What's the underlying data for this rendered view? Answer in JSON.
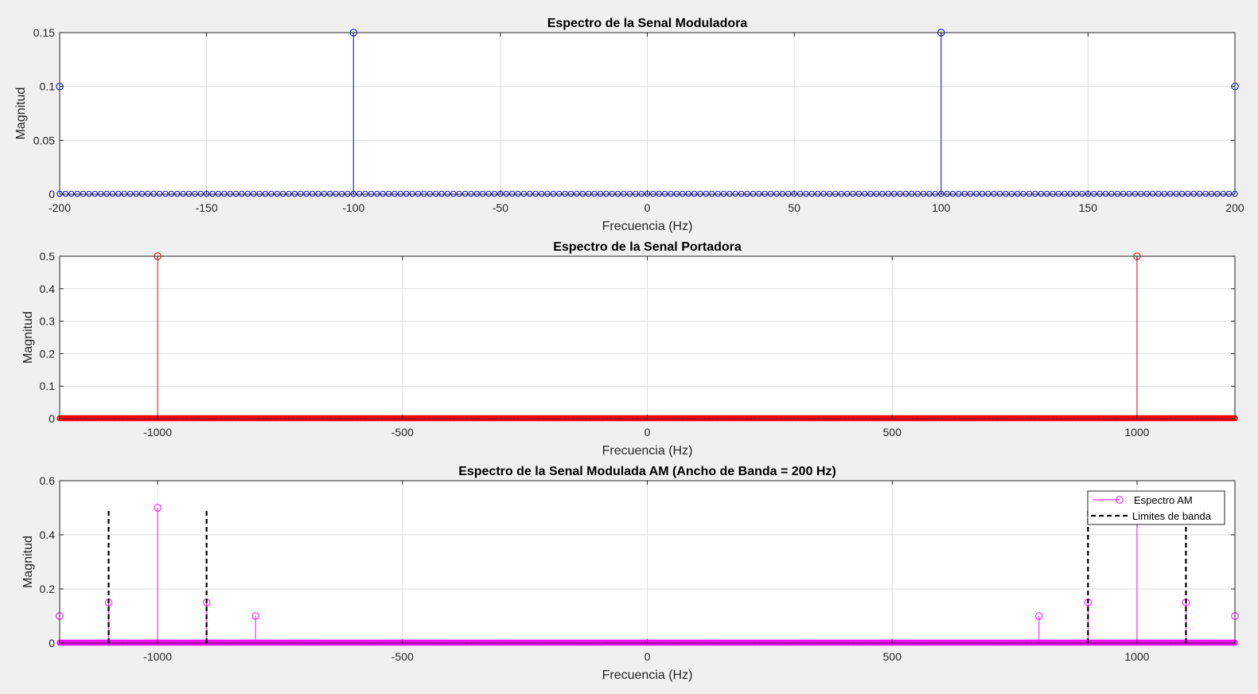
{
  "chart_data": [
    {
      "type": "stem",
      "title": "Espectro de la Senal Moduladora",
      "xlabel": "Frecuencia (Hz)",
      "ylabel": "Magnitud",
      "xlim": [
        -200,
        200
      ],
      "ylim": [
        0,
        0.15
      ],
      "xticks": [
        -200,
        -150,
        -100,
        -50,
        0,
        50,
        100,
        150,
        200
      ],
      "xtick_labels": [
        "-200",
        "-150",
        "-100",
        "-50",
        "0",
        "50",
        "100",
        "150",
        "200"
      ],
      "yticks": [
        0,
        0.05,
        0.1,
        0.15
      ],
      "ytick_labels": [
        "0",
        "0.05",
        "0.1",
        "0.15"
      ],
      "grid": true,
      "color": "#0000ff",
      "baseline_x": [
        -200,
        200
      ],
      "baseline_step": 2,
      "peaks": [
        {
          "x": -200,
          "y": 0.1
        },
        {
          "x": -100,
          "y": 0.15
        },
        {
          "x": 100,
          "y": 0.15
        },
        {
          "x": 200,
          "y": 0.1
        }
      ]
    },
    {
      "type": "stem",
      "title": "Espectro de la Senal Portadora",
      "xlabel": "Frecuencia (Hz)",
      "ylabel": "Magnitud",
      "xlim": [
        -1200,
        1200
      ],
      "ylim": [
        0,
        0.5
      ],
      "xticks": [
        -1000,
        -500,
        0,
        500,
        1000
      ],
      "xtick_labels": [
        "-1000",
        "-500",
        "0",
        "500",
        "1000"
      ],
      "yticks": [
        0,
        0.1,
        0.2,
        0.3,
        0.4,
        0.5
      ],
      "ytick_labels": [
        "0",
        "0.1",
        "0.2",
        "0.3",
        "0.4",
        "0.5"
      ],
      "grid": true,
      "color": "#ff0000",
      "baseline_x": [
        -1200,
        1200
      ],
      "baseline_step": 2,
      "peaks": [
        {
          "x": -1000,
          "y": 0.5
        },
        {
          "x": 1000,
          "y": 0.5
        }
      ]
    },
    {
      "type": "stem",
      "title": "Espectro de la Senal Modulada AM (Ancho de Banda = 200 Hz)",
      "xlabel": "Frecuencia (Hz)",
      "ylabel": "Magnitud",
      "xlim": [
        -1200,
        1200
      ],
      "ylim": [
        0,
        0.6
      ],
      "xticks": [
        -1000,
        -500,
        0,
        500,
        1000
      ],
      "xtick_labels": [
        "-1000",
        "-500",
        "0",
        "500",
        "1000"
      ],
      "yticks": [
        0,
        0.2,
        0.4,
        0.6
      ],
      "ytick_labels": [
        "0",
        "0.2",
        "0.4",
        "0.6"
      ],
      "grid": true,
      "color": "#ff00ff",
      "baseline_x": [
        -1200,
        1200
      ],
      "baseline_step": 2,
      "peaks": [
        {
          "x": -1200,
          "y": 0.1
        },
        {
          "x": -1100,
          "y": 0.15
        },
        {
          "x": -1000,
          "y": 0.5
        },
        {
          "x": -900,
          "y": 0.15
        },
        {
          "x": -800,
          "y": 0.1
        },
        {
          "x": 800,
          "y": 0.1
        },
        {
          "x": 900,
          "y": 0.15
        },
        {
          "x": 1000,
          "y": 0.5
        },
        {
          "x": 1100,
          "y": 0.15
        },
        {
          "x": 1200,
          "y": 0.1
        }
      ],
      "band_limits": {
        "x": [
          -1100,
          -900,
          900,
          1100
        ],
        "ylim": [
          0,
          0.5
        ],
        "color": "#000000"
      },
      "legend": {
        "position": "top-right",
        "entries": [
          {
            "label": "Espectro AM",
            "color": "#ff00ff",
            "style": "stem"
          },
          {
            "label": "Limites de banda",
            "color": "#000000",
            "style": "dashed"
          }
        ]
      }
    }
  ]
}
